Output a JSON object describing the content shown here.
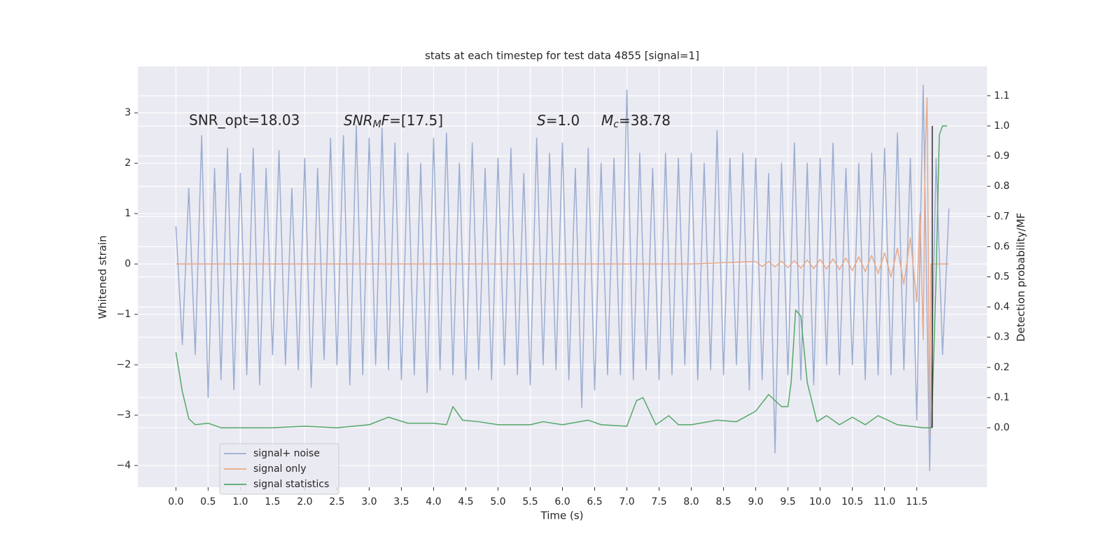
{
  "chart_data": {
    "type": "line",
    "title": "stats at each timestep for test data 4855 [signal=1]",
    "xlabel": "Time (s)",
    "ylabel": "Whitened strain",
    "y2label": "Detection probability/MF",
    "annotations": [
      "SNR_opt=18.03",
      {
        "symbol": "SNR",
        "subscript": "M",
        "symbol2": "F",
        "text": "=[17.5]"
      },
      {
        "symbol": "S",
        "text": "=1.0"
      },
      {
        "symbol": "M",
        "subscript": "c",
        "text": "=38.78"
      }
    ],
    "xlim": [
      -0.59,
      12.59
    ],
    "ylim": [
      -4.43,
      3.92
    ],
    "y2lim": [
      -0.197,
      1.197
    ],
    "xticks": [
      {
        "value": 0,
        "label": "0.0"
      },
      0.5,
      {
        "value": 1,
        "label": "1.0"
      },
      1.5,
      {
        "value": 2,
        "label": "2.0"
      },
      2.5,
      {
        "value": 3,
        "label": "3.0"
      },
      3.5,
      {
        "value": 4,
        "label": "4.0"
      },
      4.5,
      {
        "value": 5,
        "label": "5.0"
      },
      5.5,
      {
        "value": 6,
        "label": "6.0"
      },
      6.5,
      {
        "value": 7,
        "label": "7.0"
      },
      7.5,
      {
        "value": 8,
        "label": "8.0"
      },
      8.5,
      {
        "value": 9,
        "label": "9.0"
      },
      9.5,
      {
        "value": 10,
        "label": "10.0"
      },
      10.5,
      {
        "value": 11,
        "label": "11.0"
      },
      11.5
    ],
    "yticks": [
      {
        "value": -4,
        "label": "−4"
      },
      {
        "value": -3,
        "label": "−3"
      },
      {
        "value": -2,
        "label": "−2"
      },
      {
        "value": -1,
        "label": "−1"
      },
      0,
      1,
      2,
      3
    ],
    "y2ticks": [
      {
        "value": 0,
        "label": "0.0"
      },
      0.1,
      0.2,
      0.3,
      0.4,
      0.5,
      0.6,
      0.7,
      0.8,
      0.9,
      {
        "value": 1,
        "label": "1.0"
      },
      1.1
    ],
    "grid": true,
    "legend": "lower left",
    "series": [
      {
        "name": "signal+ noise",
        "color": "#9badd1",
        "x": [
          0.0,
          0.1,
          0.2,
          0.3,
          0.4,
          0.5,
          0.6,
          0.7,
          0.8,
          0.9,
          1.0,
          1.1,
          1.2,
          1.3,
          1.4,
          1.5,
          1.6,
          1.7,
          1.8,
          1.9,
          2.0,
          2.1,
          2.2,
          2.3,
          2.4,
          2.5,
          2.6,
          2.7,
          2.8,
          2.9,
          3.0,
          3.1,
          3.2,
          3.3,
          3.4,
          3.5,
          3.6,
          3.7,
          3.8,
          3.9,
          4.0,
          4.1,
          4.2,
          4.3,
          4.4,
          4.5,
          4.6,
          4.7,
          4.8,
          4.9,
          5.0,
          5.1,
          5.2,
          5.3,
          5.4,
          5.5,
          5.6,
          5.7,
          5.8,
          5.9,
          6.0,
          6.1,
          6.2,
          6.3,
          6.4,
          6.5,
          6.6,
          6.7,
          6.8,
          6.9,
          7.0,
          7.1,
          7.2,
          7.3,
          7.4,
          7.5,
          7.6,
          7.7,
          7.8,
          7.9,
          8.0,
          8.1,
          8.2,
          8.3,
          8.4,
          8.5,
          8.6,
          8.7,
          8.8,
          8.9,
          9.0,
          9.1,
          9.2,
          9.3,
          9.4,
          9.5,
          9.6,
          9.7,
          9.8,
          9.9,
          10.0,
          10.1,
          10.2,
          10.3,
          10.4,
          10.5,
          10.6,
          10.7,
          10.8,
          10.9,
          11.0,
          11.1,
          11.2,
          11.3,
          11.4,
          11.5,
          11.6,
          11.7,
          11.8,
          11.9,
          12.0
        ],
        "values": [
          0.75,
          -1.6,
          1.5,
          -1.8,
          2.55,
          -2.65,
          1.9,
          -2.3,
          2.3,
          -2.5,
          1.8,
          -2.2,
          2.3,
          -2.4,
          1.9,
          -1.8,
          2.25,
          -2.0,
          1.5,
          -2.1,
          2.1,
          -2.45,
          1.9,
          -1.9,
          2.5,
          -2.0,
          2.55,
          -2.4,
          2.75,
          -2.2,
          2.5,
          -2.0,
          2.7,
          -2.1,
          2.4,
          -2.3,
          2.2,
          -2.2,
          2.0,
          -2.55,
          2.5,
          -2.1,
          2.6,
          -2.2,
          2.0,
          -2.3,
          2.4,
          -2.1,
          1.9,
          -2.3,
          2.1,
          -2.0,
          2.3,
          -2.2,
          1.8,
          -2.4,
          2.5,
          -2.0,
          2.2,
          -2.1,
          2.4,
          -2.3,
          1.9,
          -2.85,
          2.3,
          -2.5,
          2.0,
          -2.2,
          2.1,
          -2.2,
          3.45,
          -2.3,
          2.2,
          -2.1,
          1.9,
          -2.3,
          2.2,
          -2.2,
          2.1,
          -2.0,
          2.2,
          -2.3,
          2.0,
          -2.1,
          2.65,
          -2.2,
          2.1,
          -2.0,
          2.2,
          -2.5,
          2.1,
          -2.3,
          1.8,
          -3.75,
          2.0,
          -2.2,
          2.4,
          -2.3,
          2.0,
          -2.4,
          2.1,
          -2.0,
          2.4,
          -2.2,
          1.9,
          -2.0,
          2.0,
          -2.3,
          2.2,
          -2.2,
          2.3,
          -2.2,
          2.6,
          -2.1,
          2.1,
          -3.1,
          3.55,
          -4.1,
          2.1,
          -1.8,
          1.1
        ]
      },
      {
        "name": "signal only",
        "color": "#e8a98a",
        "x": [
          0.0,
          8.0,
          9.0,
          9.1,
          9.2,
          9.3,
          9.4,
          9.5,
          9.6,
          9.7,
          9.8,
          9.9,
          10.0,
          10.1,
          10.2,
          10.3,
          10.4,
          10.5,
          10.6,
          10.7,
          10.8,
          10.9,
          11.0,
          11.1,
          11.2,
          11.3,
          11.4,
          11.5,
          11.55,
          11.6,
          11.63,
          11.66,
          11.7,
          11.72,
          12.0
        ],
        "values": [
          0,
          0,
          0.05,
          -0.05,
          0.05,
          -0.06,
          0.06,
          -0.07,
          0.07,
          -0.08,
          0.08,
          -0.09,
          0.09,
          -0.1,
          0.1,
          -0.11,
          0.12,
          -0.13,
          0.14,
          -0.15,
          0.17,
          -0.19,
          0.22,
          -0.26,
          0.32,
          -0.4,
          0.52,
          -0.75,
          1.0,
          -1.5,
          2.2,
          3.3,
          -3.4,
          0,
          0
        ]
      },
      {
        "name": "signal statistics",
        "color": "#55a868",
        "axis": "y2",
        "x": [
          0.0,
          0.1,
          0.2,
          0.3,
          0.5,
          0.7,
          1.0,
          1.5,
          2.0,
          2.5,
          3.0,
          3.3,
          3.6,
          4.0,
          4.2,
          4.3,
          4.45,
          4.7,
          5.0,
          5.5,
          5.7,
          6.0,
          6.4,
          6.6,
          7.0,
          7.15,
          7.25,
          7.45,
          7.65,
          7.8,
          8.0,
          8.4,
          8.7,
          9.0,
          9.2,
          9.4,
          9.5,
          9.55,
          9.62,
          9.7,
          9.8,
          9.95,
          10.1,
          10.3,
          10.5,
          10.7,
          10.9,
          11.2,
          11.6,
          11.73,
          11.8,
          11.85,
          11.9,
          11.97
        ],
        "values": [
          0.25,
          0.12,
          0.03,
          0.01,
          0.015,
          0.0,
          0.0,
          0.0,
          0.005,
          0.0,
          0.01,
          0.035,
          0.015,
          0.015,
          0.01,
          0.07,
          0.025,
          0.02,
          0.01,
          0.01,
          0.02,
          0.01,
          0.025,
          0.01,
          0.005,
          0.09,
          0.1,
          0.01,
          0.04,
          0.01,
          0.01,
          0.025,
          0.02,
          0.055,
          0.11,
          0.07,
          0.07,
          0.15,
          0.39,
          0.37,
          0.15,
          0.02,
          0.04,
          0.01,
          0.035,
          0.01,
          0.04,
          0.01,
          0.0,
          0.0,
          0.5,
          0.97,
          1.0,
          1.0
        ]
      }
    ],
    "vline": {
      "x": 11.74,
      "y2": [
        0,
        1
      ],
      "color": "#333333"
    }
  }
}
